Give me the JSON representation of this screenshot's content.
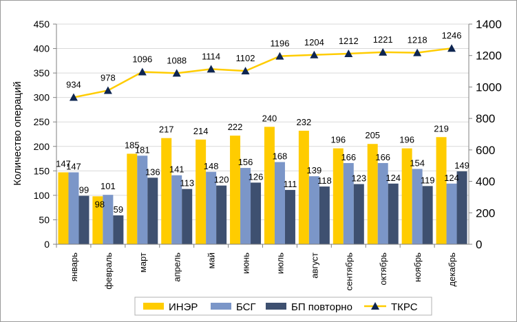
{
  "chart_data": {
    "type": "bar",
    "ylabel": "Количество операций",
    "ylim": [
      0,
      450
    ],
    "y_ticks": [
      0,
      50,
      100,
      150,
      200,
      250,
      300,
      350,
      400,
      450
    ],
    "y2lim": [
      0,
      1400
    ],
    "y2_ticks": [
      0,
      200,
      400,
      600,
      800,
      1000,
      1200,
      1400
    ],
    "grid": true,
    "legend_position": "bottom",
    "categories": [
      "январь",
      "февраль",
      "март",
      "апрель",
      "май",
      "июнь",
      "июль",
      "август",
      "сентябрь",
      "октябрь",
      "ноябрь",
      "декабрь"
    ],
    "series": [
      {
        "name": "ИНЭР",
        "type": "bar",
        "axis": "left",
        "color": "#FFCC00",
        "values": [
          147,
          98,
          185,
          217,
          214,
          222,
          240,
          232,
          196,
          205,
          196,
          219
        ]
      },
      {
        "name": "БСГ",
        "type": "bar",
        "axis": "left",
        "color": "#7B96C8",
        "values": [
          147,
          101,
          181,
          141,
          148,
          156,
          168,
          139,
          166,
          166,
          154,
          124
        ]
      },
      {
        "name": "БП повторно",
        "type": "bar",
        "axis": "left",
        "color": "#3E5070",
        "values": [
          99,
          59,
          136,
          113,
          120,
          126,
          111,
          118,
          123,
          124,
          119,
          149
        ]
      },
      {
        "name": "ТКРС",
        "type": "line",
        "axis": "right",
        "color": "#FFCC00",
        "marker": "triangle",
        "marker_color": "#0E2550",
        "values": [
          934,
          978,
          1096,
          1088,
          1114,
          1102,
          1196,
          1204,
          1212,
          1221,
          1218,
          1246
        ]
      }
    ]
  }
}
